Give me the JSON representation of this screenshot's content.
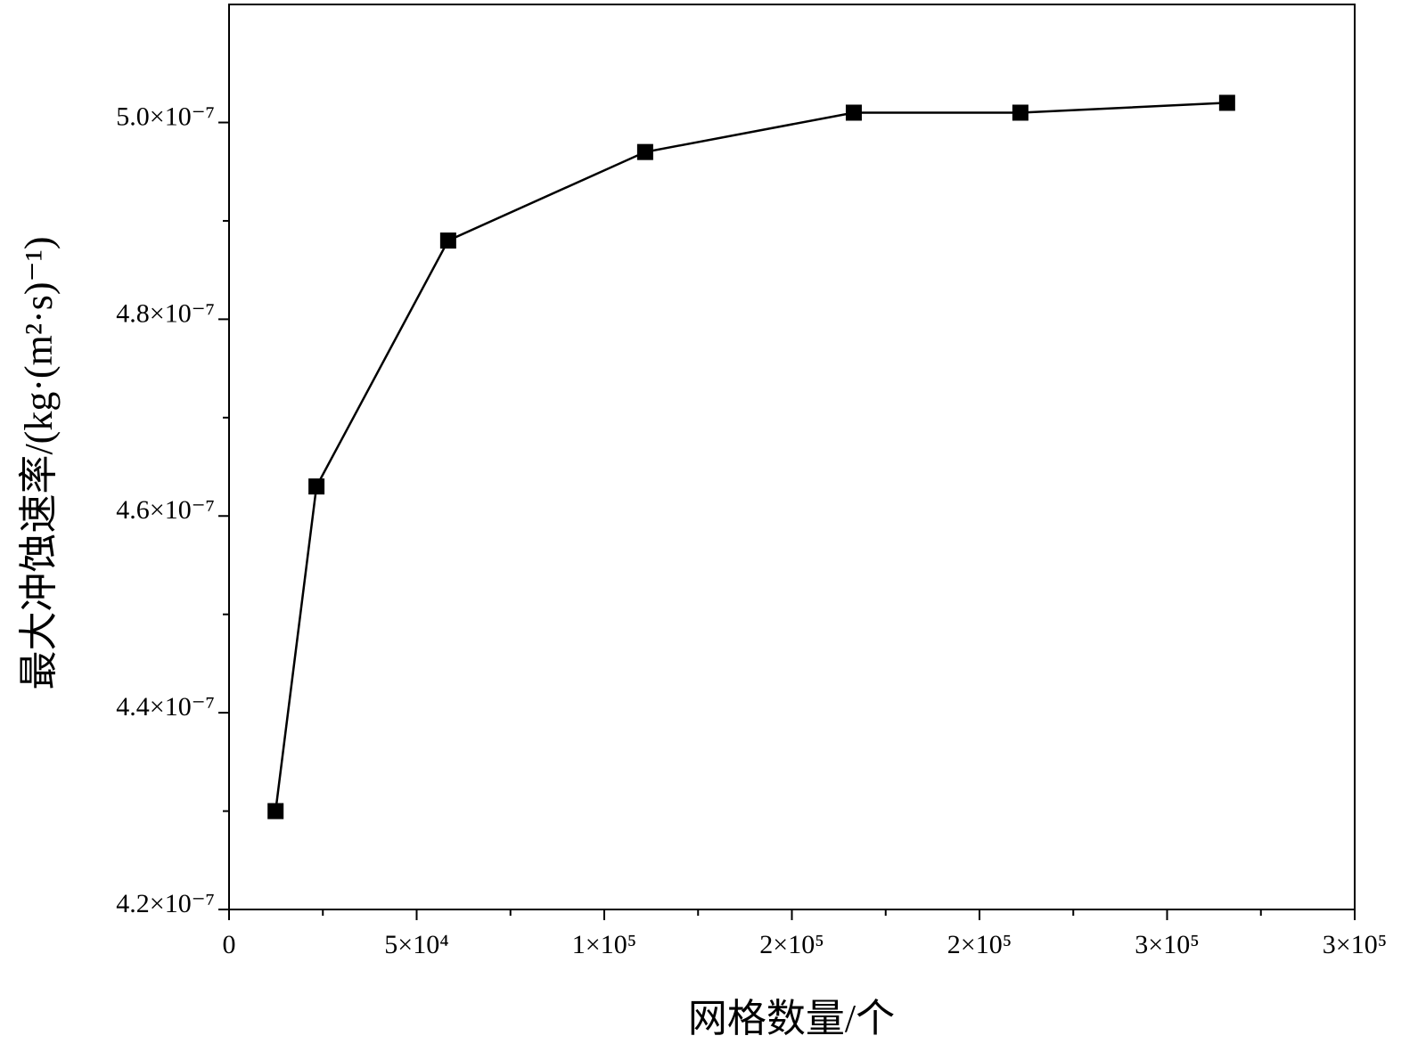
{
  "chart_data": {
    "type": "line",
    "x_label": "网格数量/个",
    "y_label": "最大冲蚀速率/(kg·(m²·s)⁻¹)",
    "x": [
      12400,
      23300,
      58400,
      110900,
      166500,
      210900,
      266000
    ],
    "series": [
      {
        "color": "#000000",
        "values": [
          4.3e-07,
          4.63e-07,
          4.88e-07,
          4.97e-07,
          5.01e-07,
          5.01e-07,
          5.02e-07
        ]
      }
    ],
    "xlim": [
      0,
      300000
    ],
    "xticks": [
      0,
      {
        "value": 50000,
        "label": "5×10⁴"
      },
      {
        "value": 100000,
        "label": "1×10⁵"
      },
      {
        "value": 150000,
        "label": "2×10⁵"
      },
      {
        "value": 200000,
        "label": "2×10⁵"
      },
      {
        "value": 250000,
        "label": "3×10⁵"
      },
      {
        "value": 300000,
        "label": "3×10⁵"
      }
    ],
    "ylim": [
      4.2e-07,
      5.12e-07
    ],
    "yticks": [
      {
        "value": 4.2e-07,
        "label": "4.2×10⁻⁷"
      },
      {
        "value": 4.4e-07,
        "label": "4.4×10⁻⁷"
      },
      {
        "value": 4.6e-07,
        "label": "4.6×10⁻⁷"
      },
      {
        "value": 4.8e-07,
        "label": "4.8×10⁻⁷"
      },
      {
        "value": 5e-07,
        "label": "5.0×10⁻⁷"
      }
    ],
    "marker": "square"
  }
}
